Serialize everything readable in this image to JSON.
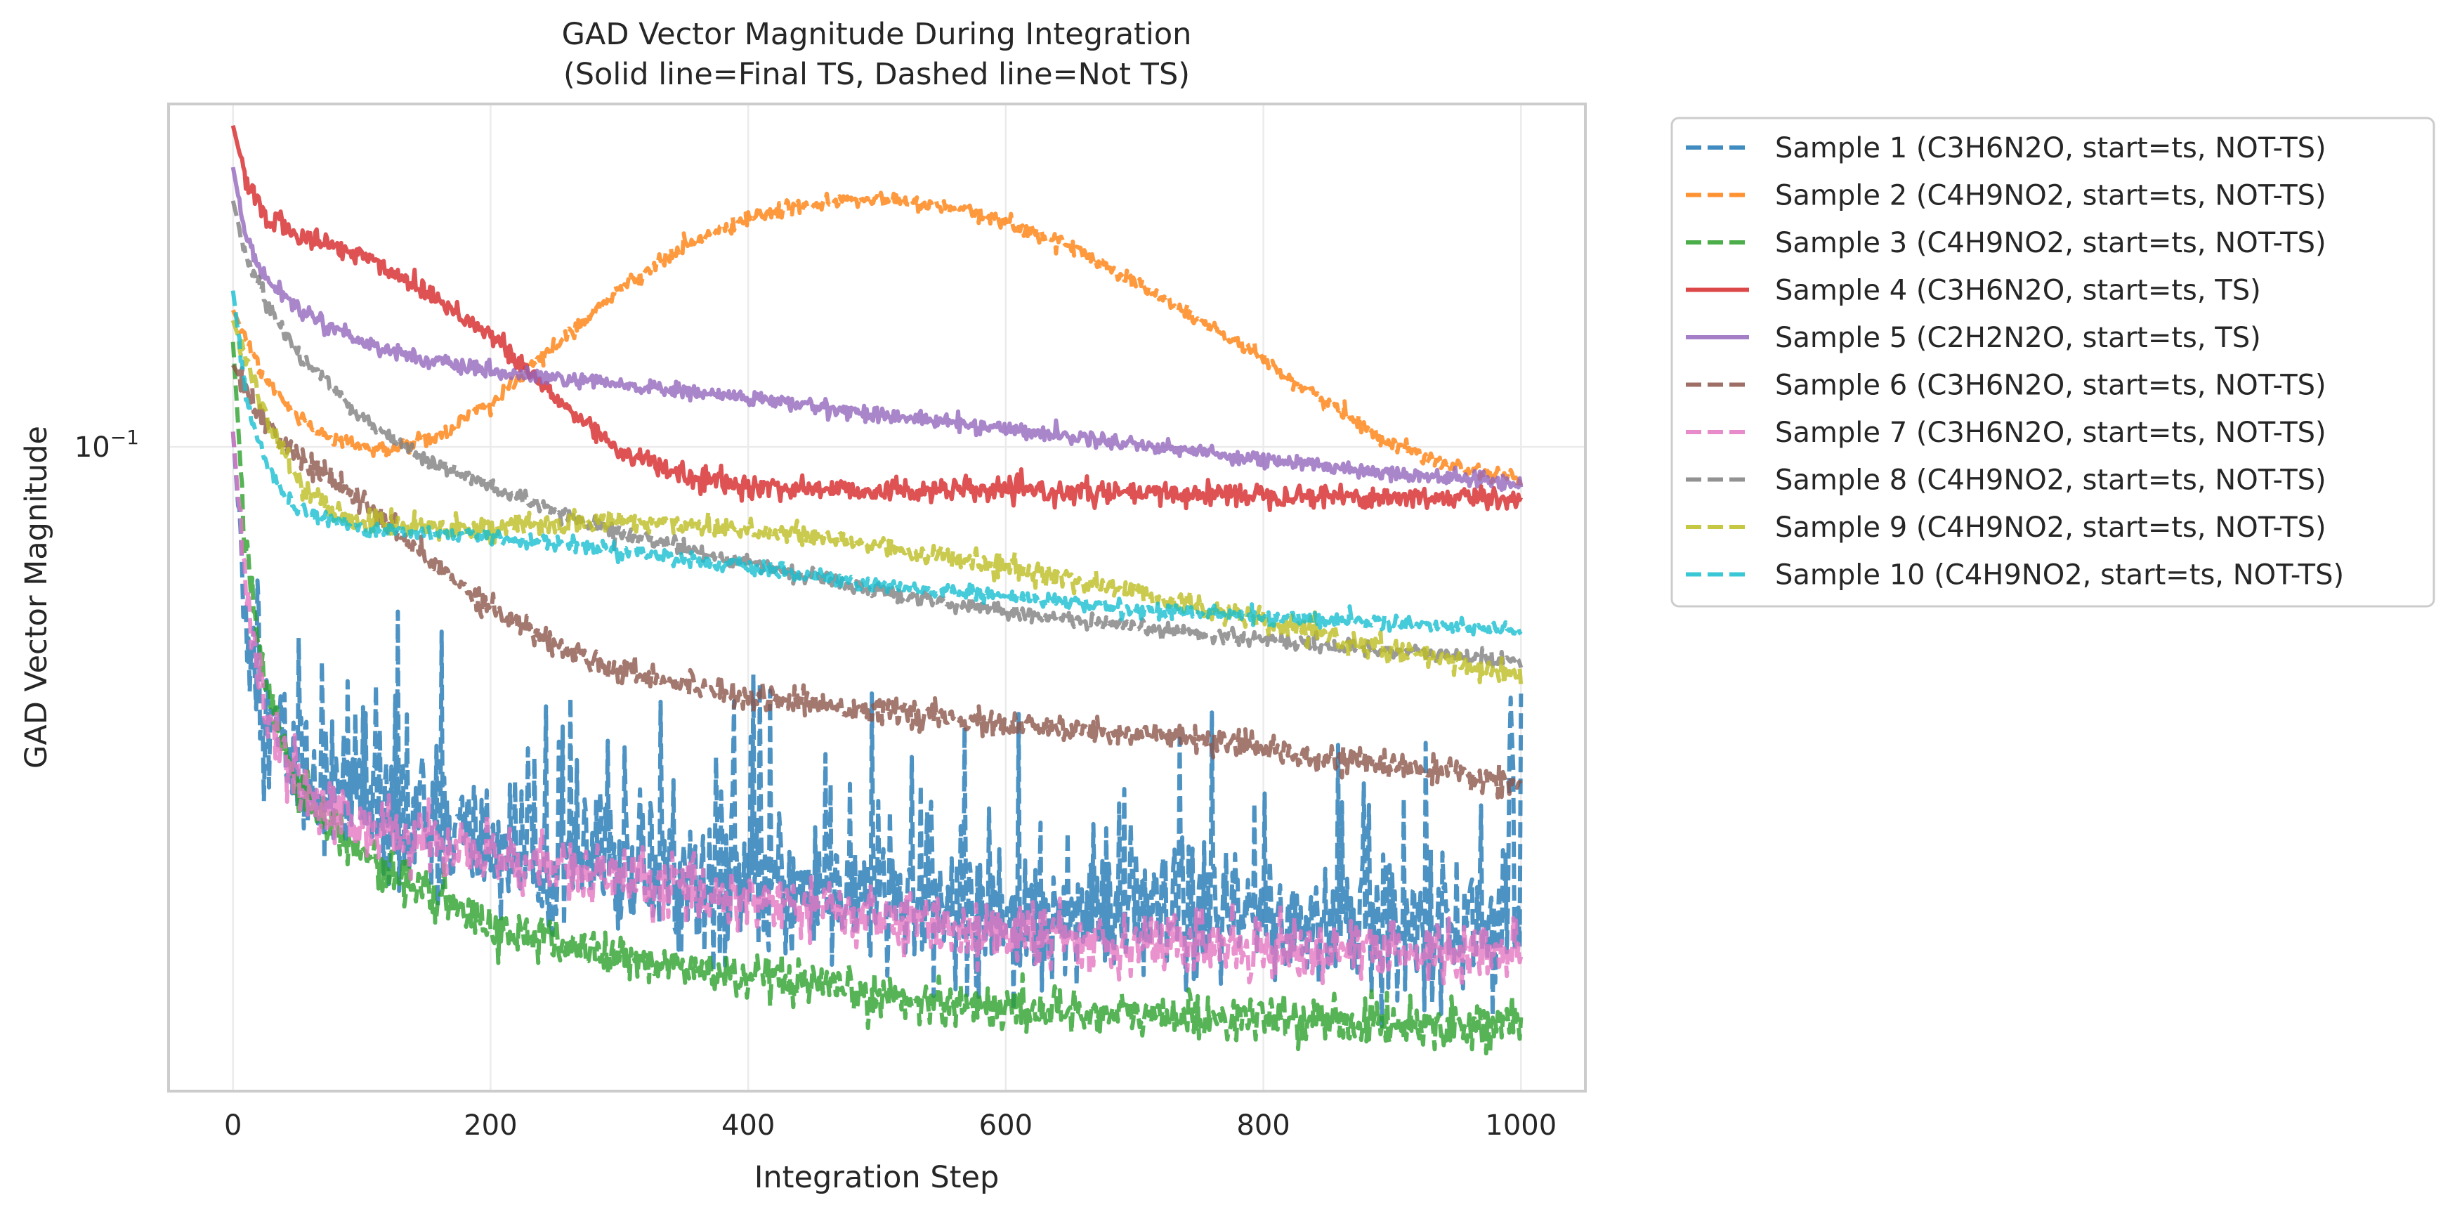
{
  "chart_data": {
    "type": "line",
    "title": "GAD Vector Magnitude During Integration",
    "subtitle": "(Solid line=Final TS, Dashed line=Not TS)",
    "xlabel": "Integration Step",
    "ylabel": "GAD Vector Magnitude",
    "xlim": [
      -50,
      1050
    ],
    "ylim": [
      0.0127,
      0.3
    ],
    "yscale": "log",
    "xticks": [
      0,
      200,
      400,
      600,
      800,
      1000
    ],
    "xtick_labels": [
      "0",
      "200",
      "400",
      "600",
      "800",
      "1000"
    ],
    "ytick_labels": [
      {
        "base": "10",
        "exp": "−1",
        "value": 0.1
      }
    ],
    "grid": true,
    "legend_placement": "outside right, top",
    "series": [
      {
        "name": "Sample 1 (C3H6N2O, start=ts, NOT-TS)",
        "color": "#1f77b4",
        "style": "dashed",
        "noise": 0.11,
        "points": [
          [
            0,
            0.105
          ],
          [
            10,
            0.058
          ],
          [
            25,
            0.042
          ],
          [
            50,
            0.036
          ],
          [
            100,
            0.032
          ],
          [
            200,
            0.028
          ],
          [
            300,
            0.026
          ],
          [
            400,
            0.0245
          ],
          [
            500,
            0.0235
          ],
          [
            600,
            0.0225
          ],
          [
            700,
            0.0222
          ],
          [
            800,
            0.022
          ],
          [
            900,
            0.0215
          ],
          [
            1000,
            0.022
          ]
        ]
      },
      {
        "name": "Sample 2 (C4H9NO2, start=ts, NOT-TS)",
        "color": "#ff7f0e",
        "style": "dashed",
        "noise": 0.012,
        "points": [
          [
            0,
            0.155
          ],
          [
            25,
            0.124
          ],
          [
            50,
            0.11
          ],
          [
            80,
            0.102
          ],
          [
            120,
            0.099
          ],
          [
            160,
            0.104
          ],
          [
            200,
            0.115
          ],
          [
            250,
            0.138
          ],
          [
            300,
            0.166
          ],
          [
            350,
            0.19
          ],
          [
            400,
            0.208
          ],
          [
            450,
            0.218
          ],
          [
            500,
            0.221
          ],
          [
            550,
            0.216
          ],
          [
            600,
            0.206
          ],
          [
            650,
            0.19
          ],
          [
            700,
            0.17
          ],
          [
            750,
            0.15
          ],
          [
            800,
            0.132
          ],
          [
            850,
            0.115
          ],
          [
            900,
            0.101
          ],
          [
            950,
            0.094
          ],
          [
            1000,
            0.09
          ]
        ]
      },
      {
        "name": "Sample 3 (C4H9NO2, start=ts, NOT-TS)",
        "color": "#2ca02c",
        "style": "dashed",
        "noise": 0.035,
        "points": [
          [
            0,
            0.14
          ],
          [
            10,
            0.072
          ],
          [
            25,
            0.046
          ],
          [
            50,
            0.034
          ],
          [
            100,
            0.027
          ],
          [
            150,
            0.024
          ],
          [
            200,
            0.0215
          ],
          [
            300,
            0.0195
          ],
          [
            400,
            0.0182
          ],
          [
            500,
            0.0172
          ],
          [
            600,
            0.0166
          ],
          [
            700,
            0.0162
          ],
          [
            800,
            0.016
          ],
          [
            900,
            0.0158
          ],
          [
            1000,
            0.0157
          ]
        ]
      },
      {
        "name": "Sample 4 (C3H6N2O, start=ts, TS)",
        "color": "#d62728",
        "style": "solid",
        "noise": 0.018,
        "points": [
          [
            0,
            0.28
          ],
          [
            10,
            0.235
          ],
          [
            25,
            0.21
          ],
          [
            50,
            0.197
          ],
          [
            100,
            0.185
          ],
          [
            150,
            0.165
          ],
          [
            200,
            0.143
          ],
          [
            250,
            0.117
          ],
          [
            300,
            0.099
          ],
          [
            350,
            0.091
          ],
          [
            400,
            0.088
          ],
          [
            500,
            0.087
          ],
          [
            600,
            0.087
          ],
          [
            700,
            0.086
          ],
          [
            800,
            0.086
          ],
          [
            900,
            0.085
          ],
          [
            1000,
            0.085
          ]
        ]
      },
      {
        "name": "Sample 5 (C2H2N2O, start=ts, TS)",
        "color": "#9467bd",
        "style": "solid",
        "noise": 0.012,
        "points": [
          [
            0,
            0.245
          ],
          [
            10,
            0.195
          ],
          [
            25,
            0.172
          ],
          [
            50,
            0.156
          ],
          [
            100,
            0.14
          ],
          [
            150,
            0.132
          ],
          [
            200,
            0.127
          ],
          [
            300,
            0.122
          ],
          [
            400,
            0.117
          ],
          [
            500,
            0.111
          ],
          [
            600,
            0.106
          ],
          [
            700,
            0.101
          ],
          [
            800,
            0.096
          ],
          [
            900,
            0.092
          ],
          [
            1000,
            0.089
          ]
        ]
      },
      {
        "name": "Sample 6 (C3H6N2O, start=ts, NOT-TS)",
        "color": "#8c564b",
        "style": "dashed",
        "noise": 0.02,
        "points": [
          [
            0,
            0.13
          ],
          [
            25,
            0.108
          ],
          [
            50,
            0.097
          ],
          [
            100,
            0.084
          ],
          [
            150,
            0.07
          ],
          [
            200,
            0.06
          ],
          [
            250,
            0.053
          ],
          [
            300,
            0.049
          ],
          [
            400,
            0.045
          ],
          [
            500,
            0.043
          ],
          [
            600,
            0.041
          ],
          [
            700,
            0.04
          ],
          [
            800,
            0.038
          ],
          [
            900,
            0.036
          ],
          [
            1000,
            0.034
          ]
        ]
      },
      {
        "name": "Sample 7 (C3H6N2O, start=ts, NOT-TS)",
        "color": "#e377c2",
        "style": "dashed",
        "noise": 0.05,
        "points": [
          [
            0,
            0.105
          ],
          [
            10,
            0.062
          ],
          [
            25,
            0.042
          ],
          [
            50,
            0.034
          ],
          [
            100,
            0.0295
          ],
          [
            200,
            0.027
          ],
          [
            300,
            0.025
          ],
          [
            400,
            0.0235
          ],
          [
            500,
            0.0222
          ],
          [
            600,
            0.021
          ],
          [
            700,
            0.0205
          ],
          [
            800,
            0.0202
          ],
          [
            900,
            0.0198
          ],
          [
            1000,
            0.0197
          ]
        ]
      },
      {
        "name": "Sample 8 (C4H9NO2, start=ts, NOT-TS)",
        "color": "#7f7f7f",
        "style": "dashed",
        "noise": 0.012,
        "points": [
          [
            0,
            0.22
          ],
          [
            10,
            0.185
          ],
          [
            25,
            0.16
          ],
          [
            50,
            0.135
          ],
          [
            100,
            0.11
          ],
          [
            150,
            0.096
          ],
          [
            200,
            0.088
          ],
          [
            250,
            0.081
          ],
          [
            300,
            0.076
          ],
          [
            400,
            0.069
          ],
          [
            500,
            0.063
          ],
          [
            600,
            0.059
          ],
          [
            700,
            0.056
          ],
          [
            800,
            0.054
          ],
          [
            900,
            0.052
          ],
          [
            1000,
            0.0505
          ]
        ]
      },
      {
        "name": "Sample 9 (C4H9NO2, start=ts, NOT-TS)",
        "color": "#bcbd22",
        "style": "dashed",
        "noise": 0.018,
        "points": [
          [
            0,
            0.15
          ],
          [
            25,
            0.11
          ],
          [
            50,
            0.09
          ],
          [
            80,
            0.08
          ],
          [
            120,
            0.078
          ],
          [
            200,
            0.077
          ],
          [
            300,
            0.079
          ],
          [
            400,
            0.077
          ],
          [
            500,
            0.073
          ],
          [
            600,
            0.068
          ],
          [
            700,
            0.063
          ],
          [
            800,
            0.057
          ],
          [
            900,
            0.052
          ],
          [
            1000,
            0.048
          ]
        ]
      },
      {
        "name": "Sample 10 (C4H9NO2, start=ts, NOT-TS)",
        "color": "#17becf",
        "style": "dashed",
        "noise": 0.012,
        "points": [
          [
            0,
            0.165
          ],
          [
            10,
            0.118
          ],
          [
            25,
            0.095
          ],
          [
            50,
            0.082
          ],
          [
            100,
            0.077
          ],
          [
            200,
            0.075
          ],
          [
            300,
            0.072
          ],
          [
            400,
            0.068
          ],
          [
            500,
            0.064
          ],
          [
            600,
            0.062
          ],
          [
            700,
            0.0595
          ],
          [
            800,
            0.058
          ],
          [
            900,
            0.057
          ],
          [
            1000,
            0.0555
          ]
        ]
      }
    ]
  }
}
